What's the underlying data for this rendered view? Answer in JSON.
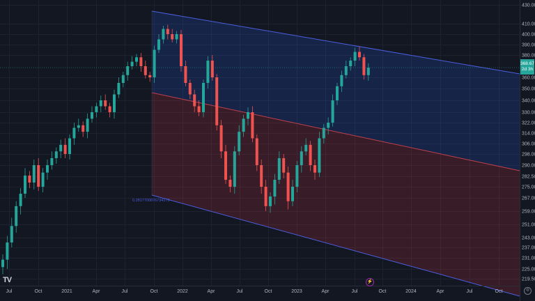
{
  "chart_data": {
    "type": "candlestick",
    "price_axis_labels": [
      "430.00",
      "410.00",
      "400.00",
      "390.00",
      "380.00",
      "360.00",
      "350.00",
      "340.00",
      "330.00",
      "322.00",
      "314.00",
      "306.00",
      "298.00",
      "290.00",
      "282.50",
      "275.00",
      "267.00",
      "259.00",
      "251.00",
      "243.00",
      "237.00",
      "231.00",
      "225.00",
      "219.50"
    ],
    "price_axis_values": [
      430,
      410,
      400,
      390,
      380,
      360,
      350,
      340,
      330,
      322,
      314,
      306,
      298,
      290,
      282.5,
      275,
      267,
      259,
      251,
      243,
      237,
      231,
      225,
      219.5
    ],
    "time_axis_labels": [
      "Jul",
      "Oct",
      "2021",
      "Apr",
      "Jul",
      "Oct",
      "2022",
      "Apr",
      "Jul",
      "Oct",
      "2023",
      "Apr",
      "Jul",
      "Oct",
      "2024",
      "Apr",
      "Jul",
      "Oct"
    ],
    "closes": [
      230,
      240,
      250,
      262,
      270,
      283,
      278,
      290,
      275,
      285,
      290,
      295,
      300,
      305,
      298,
      310,
      318,
      320,
      315,
      325,
      330,
      335,
      340,
      335,
      330,
      345,
      355,
      362,
      370,
      374,
      378,
      370,
      362,
      360,
      385,
      395,
      405,
      400,
      395,
      400,
      370,
      355,
      345,
      335,
      330,
      355,
      375,
      360,
      320,
      300,
      280,
      275,
      300,
      315,
      325,
      330,
      310,
      290,
      275,
      262,
      268,
      280,
      295,
      285,
      265,
      275,
      290,
      300,
      305,
      290,
      285,
      310,
      318,
      322,
      340,
      352,
      362,
      370,
      375,
      383,
      378,
      362,
      368.67
    ],
    "last_price": "368.67",
    "countdown": "2d 3h",
    "up_color": "#26a69a",
    "down_color": "#ef5350",
    "channel_label": "0.2817700876734279",
    "channel_upper_color": "#2962ff",
    "channel_lower_color": "#f23645",
    "scale": "log",
    "grid": true
  },
  "branding": {
    "logo": "TV"
  },
  "icons": {
    "alert": "lightning-icon",
    "settings": "settings-icon"
  }
}
